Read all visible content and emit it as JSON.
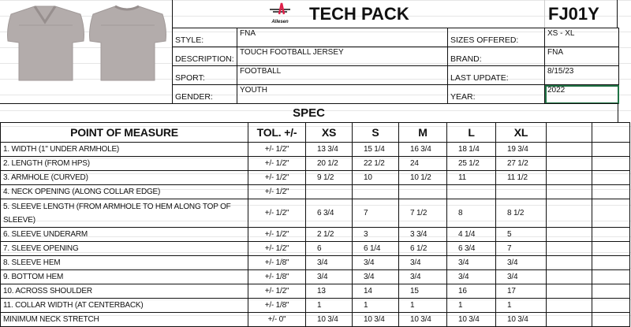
{
  "header": {
    "logo_text": "Allesen",
    "title": "TECH PACK",
    "style_code": "FJ01Y"
  },
  "info": {
    "left": [
      {
        "label": "STYLE:",
        "value": "FNA"
      },
      {
        "label": "DESCRIPTION:",
        "value": "TOUCH FOOTBALL JERSEY"
      },
      {
        "label": "SPORT:",
        "value": "FOOTBALL"
      },
      {
        "label": "GENDER:",
        "value": "YOUTH"
      }
    ],
    "right": [
      {
        "label": "SIZES OFFERED:",
        "value": "XS - XL"
      },
      {
        "label": "BRAND:",
        "value": "FNA"
      },
      {
        "label": "LAST UPDATE:",
        "value": "8/15/23"
      },
      {
        "label": "YEAR:",
        "value": "2022"
      }
    ]
  },
  "spec": {
    "title": "SPEC",
    "columns": [
      "POINT OF MEASURE",
      "TOL. +/-",
      "XS",
      "S",
      "M",
      "L",
      "XL",
      "",
      ""
    ],
    "rows": [
      [
        "1. WIDTH (1\" UNDER ARMHOLE)",
        "+/- 1/2\"",
        "13 3/4",
        "15 1/4",
        "16 3/4",
        "18 1/4",
        "19 3/4"
      ],
      [
        "2. LENGTH (FROM HPS)",
        "+/- 1/2\"",
        "20 1/2",
        "22 1/2",
        "24",
        "25 1/2",
        "27 1/2"
      ],
      [
        "3. ARMHOLE (CURVED)",
        "+/- 1/2\"",
        "9 1/2",
        "10",
        "10 1/2",
        "11",
        "11 1/2"
      ],
      [
        "4. NECK OPENING (ALONG COLLAR EDGE)",
        "+/- 1/2\"",
        "",
        "",
        "",
        "",
        ""
      ],
      [
        "5. SLEEVE LENGTH (FROM ARMHOLE TO HEM ALONG TOP OF SLEEVE)",
        "+/- 1/2\"",
        "6 3/4",
        "7",
        "7 1/2",
        "8",
        "8 1/2"
      ],
      [
        "6. SLEEVE UNDERARM",
        "+/- 1/2\"",
        "2 1/2",
        "3",
        "3 3/4",
        "4 1/4",
        "5"
      ],
      [
        "7. SLEEVE OPENING",
        "+/- 1/2\"",
        "6",
        "6 1/4",
        "6 1/2",
        "6 3/4",
        "7"
      ],
      [
        "8. SLEEVE HEM",
        "+/- 1/8\"",
        "3/4",
        "3/4",
        "3/4",
        "3/4",
        "3/4"
      ],
      [
        "9. BOTTOM HEM",
        "+/- 1/8\"",
        "3/4",
        "3/4",
        "3/4",
        "3/4",
        "3/4"
      ],
      [
        "10. ACROSS SHOULDER",
        "+/- 1/2\"",
        "13",
        "14",
        "15",
        "16",
        "17"
      ],
      [
        "11. COLLAR WIDTH (AT CENTERBACK)",
        "+/- 1/8\"",
        "1",
        "1",
        "1",
        "1",
        "1"
      ],
      [
        "MINIMUM NECK STRETCH",
        "+/- 0\"",
        "10 3/4",
        "10 3/4",
        "10 3/4",
        "10 3/4",
        "10 3/4"
      ]
    ]
  },
  "colors": {
    "selected_cell_border": "#217346",
    "jersey": "#b3acab",
    "logo_red": "#e0204a"
  }
}
